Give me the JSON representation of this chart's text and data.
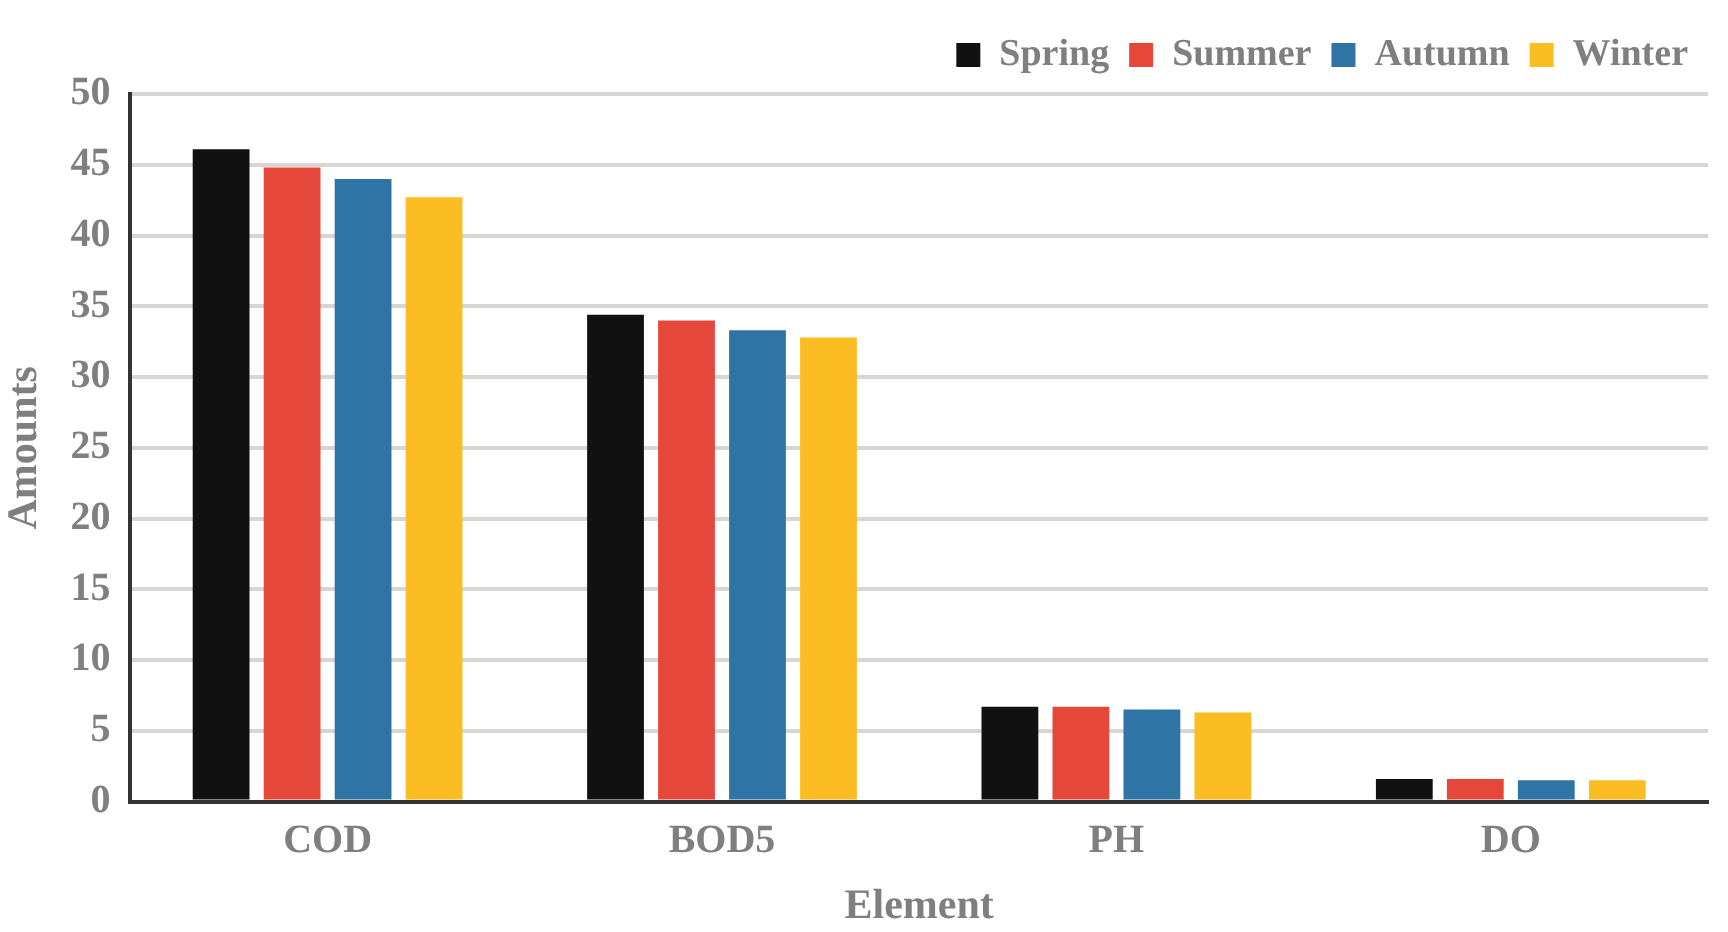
{
  "chart_data": {
    "type": "bar",
    "xlabel": "Element",
    "ylabel": "Amounts",
    "categories": [
      "COD",
      "BOD5",
      "PH",
      "DO"
    ],
    "series": [
      {
        "name": "Spring",
        "color": "#111111",
        "values": [
          46.1,
          34.4,
          6.7,
          1.6
        ]
      },
      {
        "name": "Summer",
        "color": "#e5473a",
        "values": [
          44.8,
          34,
          6.7,
          1.6
        ]
      },
      {
        "name": "Autumn",
        "color": "#2e75a6",
        "values": [
          44,
          33.3,
          6.5,
          1.5
        ]
      },
      {
        "name": "Winter",
        "color": "#fbbd22",
        "values": [
          42.7,
          32.8,
          6.3,
          1.5
        ]
      }
    ],
    "ylim": [
      0,
      50
    ],
    "yticks": [
      0,
      5,
      10,
      15,
      20,
      25,
      30,
      35,
      40,
      45,
      50
    ],
    "grid": "y",
    "legend": "top right"
  }
}
